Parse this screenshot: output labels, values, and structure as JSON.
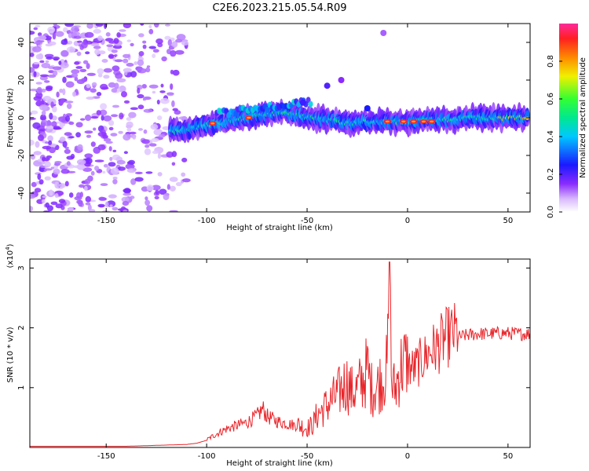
{
  "title": "C2E6.2023.215.05.54.R09",
  "chart_data": [
    {
      "type": "heatmap",
      "xlabel": "Height of straight line (km)",
      "ylabel": "Frequency (Hz)",
      "xlim": [
        -188,
        61
      ],
      "ylim": [
        -50,
        50
      ],
      "xticks": [
        -150,
        -100,
        -50,
        0,
        50
      ],
      "yticks": [
        -40,
        -20,
        0,
        20,
        40
      ],
      "colorbar": {
        "label": "Normalized spectral amplitude",
        "range": [
          0.0,
          1.0
        ],
        "ticks": [
          "0.0",
          "0.2",
          "0.4",
          "0.6",
          "0.8"
        ]
      },
      "ridge": {
        "description_values": "dominant frequency vs height",
        "x": [
          -115,
          -100,
          -90,
          -80,
          -70,
          -60,
          -50,
          -40,
          -30,
          -20,
          -10,
          0,
          10,
          20,
          30,
          40,
          50,
          60
        ],
        "y": [
          -7,
          -4,
          -2,
          0,
          2,
          3,
          0,
          -1,
          -3,
          -2,
          -2,
          -2,
          -1,
          -1,
          0,
          0,
          0,
          0
        ]
      }
    },
    {
      "type": "line",
      "xlabel": "Height of straight line (km)",
      "ylabel": "SNR (10 * v/v)",
      "y_multiplier": "(x10",
      "y_multiplier_exp": "4",
      "xlim": [
        -188,
        61
      ],
      "ylim": [
        0,
        3.15
      ],
      "xticks": [
        -150,
        -100,
        -50,
        0,
        50
      ],
      "yticks": [
        1,
        2,
        3
      ],
      "color": "#e8262b",
      "series": [
        {
          "x": [
            -188,
            -180,
            -170,
            -160,
            -150,
            -140,
            -130,
            -120,
            -110,
            -105,
            -100,
            -95,
            -90,
            -85,
            -80,
            -75,
            -72,
            -70,
            -65,
            -60,
            -55,
            -50,
            -47,
            -45,
            -40,
            -35,
            -32,
            -30,
            -28,
            -25,
            -22,
            -20,
            -18,
            -15,
            -12,
            -10,
            -9,
            -8,
            -6,
            -4,
            -2,
            0,
            3,
            6,
            9,
            12,
            15,
            18,
            22,
            26,
            30,
            35,
            40,
            45,
            50,
            55,
            61
          ],
          "y": [
            0.02,
            0.02,
            0.02,
            0.02,
            0.02,
            0.02,
            0.03,
            0.04,
            0.05,
            0.07,
            0.12,
            0.22,
            0.3,
            0.35,
            0.4,
            0.5,
            0.62,
            0.5,
            0.42,
            0.38,
            0.35,
            0.3,
            0.35,
            0.5,
            0.65,
            0.8,
            0.95,
            1.0,
            0.85,
            0.9,
            1.05,
            1.2,
            0.9,
            0.95,
            1.1,
            1.2,
            3.1,
            0.95,
            0.9,
            1.2,
            1.3,
            1.3,
            1.25,
            1.35,
            1.45,
            1.55,
            1.6,
            1.72,
            1.8,
            1.85,
            1.88,
            1.9,
            1.9,
            1.91,
            1.91,
            1.9,
            1.9
          ]
        }
      ]
    }
  ]
}
